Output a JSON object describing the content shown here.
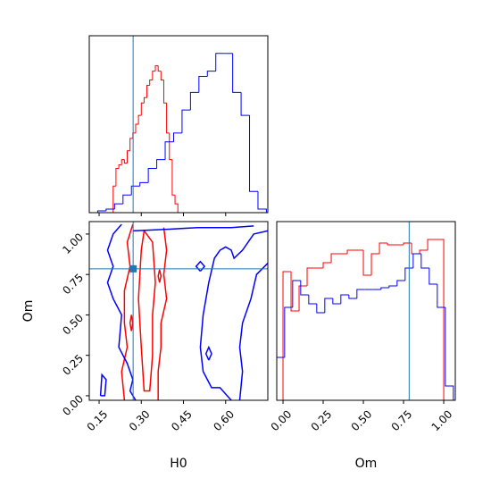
{
  "chart_data": [
    {
      "type": "histogram",
      "xlim": [
        0.115,
        0.75
      ],
      "ylim": [
        0,
        1
      ],
      "xticks": [
        0.15,
        0.3,
        0.45,
        0.6
      ],
      "truth": 0.271,
      "truth_color": "#1f77b4",
      "series": [
        {
          "color": "#ff0000",
          "bins": [
            0.2,
            0.21,
            0.22,
            0.23,
            0.24,
            0.25,
            0.26,
            0.27,
            0.28,
            0.29,
            0.3,
            0.31,
            0.32,
            0.33,
            0.34,
            0.35,
            0.36,
            0.37,
            0.38,
            0.39,
            0.4,
            0.41,
            0.42,
            0.43
          ],
          "values": [
            0.15,
            0.25,
            0.27,
            0.3,
            0.28,
            0.35,
            0.42,
            0.45,
            0.5,
            0.55,
            0.62,
            0.65,
            0.72,
            0.75,
            0.8,
            0.83,
            0.8,
            0.75,
            0.62,
            0.45,
            0.3,
            0.1,
            0.05
          ]
        },
        {
          "color": "#0000ff",
          "bins": [
            0.145,
            0.175,
            0.205,
            0.235,
            0.265,
            0.295,
            0.325,
            0.355,
            0.385,
            0.415,
            0.445,
            0.475,
            0.505,
            0.535,
            0.565,
            0.595,
            0.625,
            0.655,
            0.685,
            0.715,
            0.745
          ],
          "values": [
            0.01,
            0.02,
            0.05,
            0.1,
            0.15,
            0.17,
            0.25,
            0.3,
            0.4,
            0.45,
            0.58,
            0.68,
            0.77,
            0.8,
            0.9,
            0.9,
            0.68,
            0.55,
            0.12,
            0.02
          ]
        }
      ]
    },
    {
      "type": "contour",
      "xlabel": "H0",
      "ylabel": "Om",
      "xlim": [
        0.115,
        0.75
      ],
      "ylim": [
        -0.028,
        1.077
      ],
      "xticks": [
        0.15,
        {
          "value": 0.3,
          "label": "0.30"
        },
        0.45,
        {
          "value": 0.6,
          "label": "0.60"
        }
      ],
      "yticks": [
        {
          "value": 0,
          "label": "0.00"
        },
        0.25,
        {
          "value": 0.5,
          "label": "0.50"
        },
        0.75,
        {
          "value": 1,
          "label": "1.00"
        }
      ],
      "truth": [
        0.271,
        0.785
      ],
      "truth_color": "#1f77b4",
      "lines": [
        {
          "color": "#ff0000",
          "x": [
            0.27,
            0.25,
            0.26,
            0.24,
            0.24,
            0.25,
            0.23,
            0.24
          ],
          "y": [
            1.06,
            0.95,
            0.8,
            0.65,
            0.45,
            0.3,
            0.15,
            -0.028
          ]
        },
        {
          "color": "#ff0000",
          "x": [
            0.38,
            0.39,
            0.38,
            0.39,
            0.37,
            0.37,
            0.36,
            0.36
          ],
          "y": [
            1.04,
            0.9,
            0.75,
            0.6,
            0.45,
            0.3,
            0.15,
            -0.028
          ]
        },
        {
          "color": "#ff0000",
          "x": [
            0.31,
            0.34,
            0.35,
            0.34,
            0.34,
            0.33,
            0.31,
            0.3,
            0.29,
            0.3,
            0.31
          ],
          "y": [
            1.02,
            0.95,
            0.7,
            0.5,
            0.25,
            0.03,
            0.03,
            0.3,
            0.6,
            0.9,
            1.02
          ]
        },
        {
          "color": "#ff0000",
          "x": [
            0.265,
            0.27,
            0.265,
            0.26,
            0.265
          ],
          "y": [
            0.4,
            0.45,
            0.5,
            0.45,
            0.4
          ]
        },
        {
          "color": "#ff0000",
          "x": [
            0.365,
            0.37,
            0.365,
            0.36,
            0.365
          ],
          "y": [
            0.7,
            0.74,
            0.78,
            0.74,
            0.7
          ]
        },
        {
          "color": "#0000ff",
          "x": [
            0.23,
            0.2,
            0.18,
            0.2,
            0.18,
            0.2,
            0.23,
            0.22,
            0.25,
            0.27,
            0.26,
            0.28
          ],
          "y": [
            1.06,
            1.0,
            0.9,
            0.8,
            0.7,
            0.6,
            0.5,
            0.3,
            0.2,
            0.1,
            0.03,
            -0.028
          ]
        },
        {
          "color": "#0000ff",
          "x": [
            0.155,
            0.17,
            0.175,
            0.16,
            0.155
          ],
          "y": [
            0.0,
            0.0,
            0.1,
            0.13,
            0.0
          ]
        },
        {
          "color": "#0000ff",
          "x": [
            0.27,
            0.4,
            0.5,
            0.62,
            0.7
          ],
          "y": [
            1.02,
            1.03,
            1.04,
            1.04,
            1.05
          ]
        },
        {
          "color": "#0000ff",
          "x": [
            0.62,
            0.58,
            0.55,
            0.52,
            0.51,
            0.52,
            0.54,
            0.56,
            0.58,
            0.6,
            0.62,
            0.63,
            0.66,
            0.7,
            0.75
          ],
          "y": [
            -0.028,
            0.05,
            0.05,
            0.15,
            0.3,
            0.5,
            0.7,
            0.85,
            0.9,
            0.92,
            0.9,
            0.85,
            0.9,
            1.0,
            1.02
          ]
        },
        {
          "color": "#0000ff",
          "x": [
            0.75,
            0.71,
            0.69,
            0.66,
            0.65,
            0.66,
            0.65
          ],
          "y": [
            0.82,
            0.75,
            0.6,
            0.45,
            0.3,
            0.15,
            -0.028
          ]
        },
        {
          "color": "#0000ff",
          "x": [
            0.54,
            0.55,
            0.54,
            0.53,
            0.54
          ],
          "y": [
            0.22,
            0.26,
            0.3,
            0.26,
            0.22
          ]
        },
        {
          "color": "#0000ff",
          "x": [
            0.51,
            0.525,
            0.51,
            0.495,
            0.51
          ],
          "y": [
            0.77,
            0.8,
            0.83,
            0.8,
            0.77
          ]
        }
      ]
    },
    {
      "type": "histogram",
      "xlabel": "Om",
      "xlim": [
        -0.039,
        1.072
      ],
      "ylim": [
        0,
        1
      ],
      "xticks": [
        {
          "value": 0,
          "label": "0.00"
        },
        0.25,
        {
          "value": 0.5,
          "label": "0.50"
        },
        0.75,
        {
          "value": 1,
          "label": "1.00"
        }
      ],
      "truth": 0.785,
      "truth_color": "#1f77b4",
      "series": [
        {
          "color": "#ff0000",
          "bins": [
            0,
            0.05,
            0.1,
            0.15,
            0.2,
            0.25,
            0.3,
            0.35,
            0.4,
            0.45,
            0.5,
            0.55,
            0.6,
            0.65,
            0.7,
            0.75,
            0.8,
            0.85,
            0.9,
            0.95,
            1.0
          ],
          "values": [
            0.72,
            0.5,
            0.64,
            0.74,
            0.74,
            0.77,
            0.82,
            0.82,
            0.84,
            0.84,
            0.7,
            0.82,
            0.88,
            0.87,
            0.87,
            0.88,
            0.82,
            0.84,
            0.9,
            0.9
          ]
        },
        {
          "color": "#0000ff",
          "bins": [
            -0.04,
            0.01,
            0.06,
            0.11,
            0.16,
            0.21,
            0.26,
            0.31,
            0.36,
            0.41,
            0.46,
            0.51,
            0.56,
            0.61,
            0.66,
            0.71,
            0.76,
            0.81,
            0.86,
            0.91,
            0.96,
            1.01,
            1.06
          ],
          "values": [
            0.24,
            0.52,
            0.67,
            0.59,
            0.54,
            0.49,
            0.57,
            0.54,
            0.59,
            0.57,
            0.62,
            0.62,
            0.62,
            0.63,
            0.64,
            0.67,
            0.74,
            0.82,
            0.74,
            0.65,
            0.52,
            0.08
          ]
        }
      ]
    }
  ]
}
